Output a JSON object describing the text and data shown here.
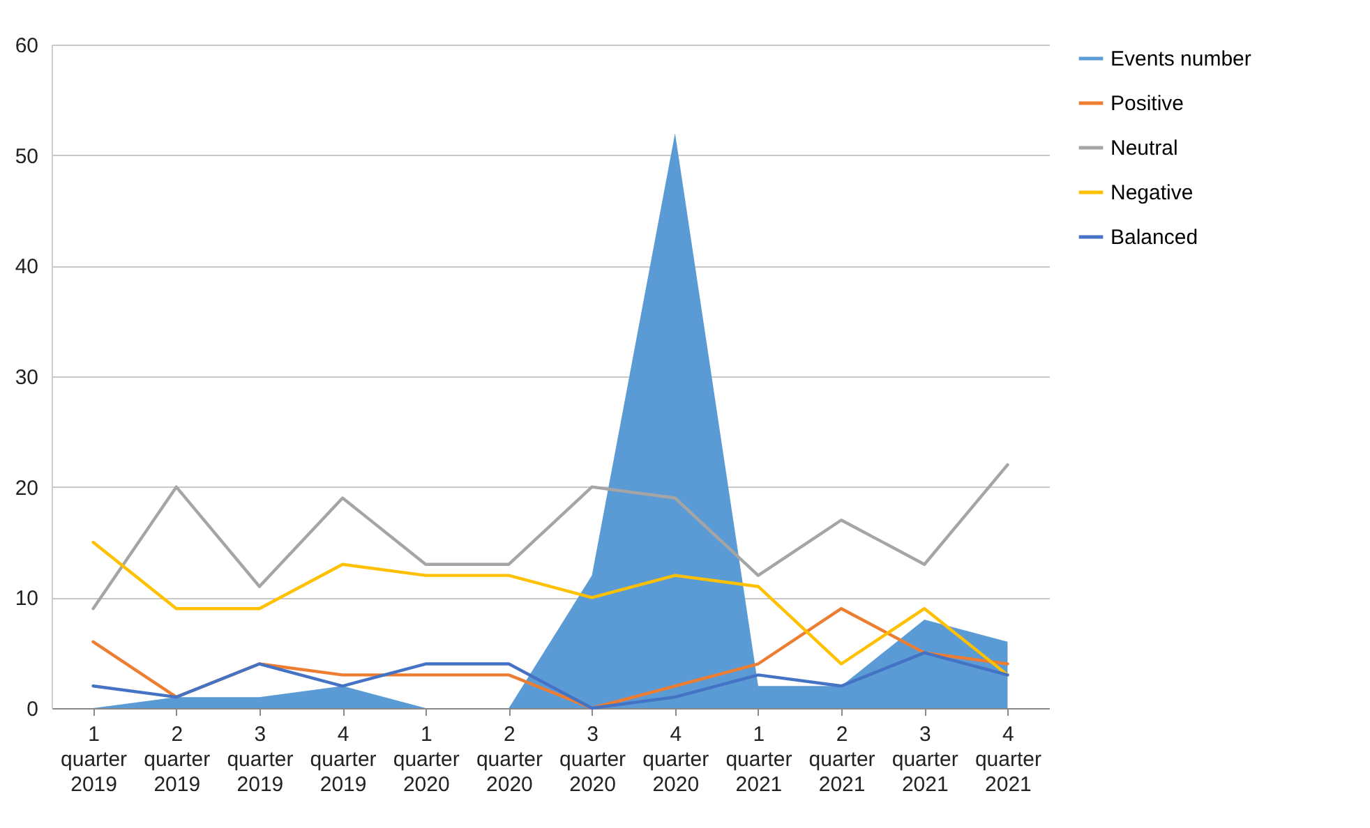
{
  "chart_data": {
    "type": "line",
    "categories": [
      "1 quarter 2019",
      "2 quarter 2019",
      "3 quarter 2019",
      "4 quarter 2019",
      "1 quarter 2020",
      "2 quarter 2020",
      "3 quarter 2020",
      "4 quarter 2020",
      "1 quarter 2021",
      "2 quarter 2021",
      "3 quarter 2021",
      "4 quarter 2021"
    ],
    "series": [
      {
        "name": "Events number",
        "type": "area",
        "color": "#5b9bd5",
        "values": [
          0,
          1,
          1,
          2,
          0,
          0,
          12,
          52,
          2,
          2,
          8,
          6
        ]
      },
      {
        "name": "Positive",
        "color": "#ed7d31",
        "values": [
          6,
          1,
          4,
          3,
          3,
          3,
          0,
          2,
          4,
          9,
          5,
          4
        ]
      },
      {
        "name": "Neutral",
        "color": "#a5a5a5",
        "values": [
          9,
          20,
          11,
          19,
          13,
          13,
          20,
          19,
          12,
          17,
          13,
          22
        ]
      },
      {
        "name": "Negative",
        "color": "#ffc000",
        "values": [
          15,
          9,
          9,
          13,
          12,
          12,
          10,
          12,
          11,
          4,
          9,
          3
        ]
      },
      {
        "name": "Balanced",
        "color": "#4472c4",
        "values": [
          2,
          1,
          4,
          2,
          4,
          4,
          0,
          1,
          3,
          2,
          5,
          3
        ]
      }
    ],
    "ylim": [
      0,
      60
    ],
    "yticks": [
      0,
      10,
      20,
      30,
      40,
      50,
      60
    ],
    "grid": "y",
    "legend": "right"
  }
}
